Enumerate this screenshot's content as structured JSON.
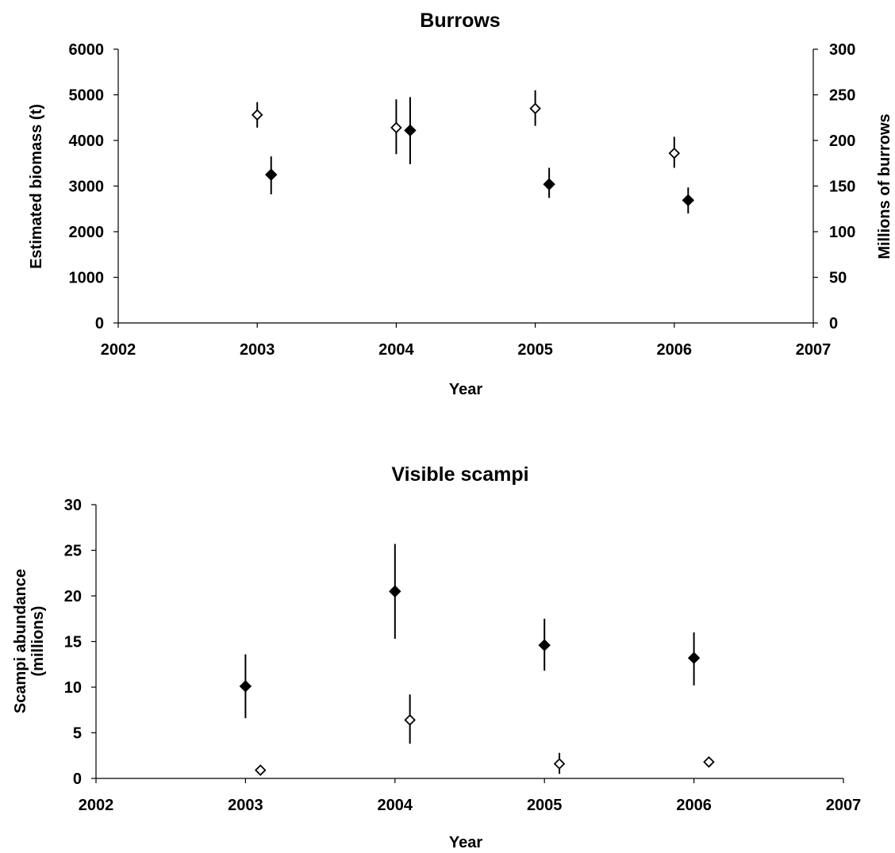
{
  "chart_data": [
    {
      "type": "scatter",
      "title": "Burrows",
      "xlabel": "Year",
      "ylabel": "Estimated biomass (t)",
      "y2label": "Millions of burrows",
      "xlim": [
        2002,
        2007
      ],
      "ylim": [
        0,
        6000
      ],
      "y2lim": [
        0,
        300
      ],
      "xticks": [
        "2002",
        "2003",
        "2004",
        "2005",
        "2006",
        "2007"
      ],
      "yticks": [
        "0",
        "1000",
        "2000",
        "3000",
        "4000",
        "5000",
        "6000"
      ],
      "y2ticks": [
        "0",
        "50",
        "100",
        "150",
        "200",
        "250",
        "300"
      ],
      "grid": false,
      "series": [
        {
          "axis": "y2",
          "marker": "open-diamond",
          "points": [
            {
              "x": 2003.0,
              "y": 228,
              "lo": 214,
              "hi": 242
            },
            {
              "x": 2004.0,
              "y": 214,
              "lo": 185,
              "hi": 245
            },
            {
              "x": 2005.0,
              "y": 235,
              "lo": 216,
              "hi": 255
            },
            {
              "x": 2006.0,
              "y": 186,
              "lo": 170,
              "hi": 204
            }
          ]
        },
        {
          "axis": "y",
          "marker": "filled-diamond",
          "points": [
            {
              "x": 2003.1,
              "y": 3250,
              "lo": 2820,
              "hi": 3650
            },
            {
              "x": 2004.1,
              "y": 4220,
              "lo": 3480,
              "hi": 4950
            },
            {
              "x": 2005.1,
              "y": 3040,
              "lo": 2740,
              "hi": 3400
            },
            {
              "x": 2006.1,
              "y": 2690,
              "lo": 2400,
              "hi": 2970
            }
          ]
        }
      ]
    },
    {
      "type": "scatter",
      "title": "Visible scampi",
      "xlabel": "Year",
      "ylabel": "Scampi abundance (millions)",
      "ylabel_lines": [
        "Scampi abundance",
        "(millions)"
      ],
      "xlim": [
        2002,
        2007
      ],
      "ylim": [
        0,
        30
      ],
      "xticks": [
        "2002",
        "2003",
        "2004",
        "2005",
        "2006",
        "2007"
      ],
      "yticks": [
        "0",
        "5",
        "10",
        "15",
        "20",
        "25",
        "30"
      ],
      "grid": false,
      "series": [
        {
          "axis": "y",
          "marker": "filled-diamond",
          "points": [
            {
              "x": 2003.0,
              "y": 10.1,
              "lo": 6.6,
              "hi": 13.6
            },
            {
              "x": 2004.0,
              "y": 20.5,
              "lo": 15.3,
              "hi": 25.7
            },
            {
              "x": 2005.0,
              "y": 14.6,
              "lo": 11.8,
              "hi": 17.5
            },
            {
              "x": 2006.0,
              "y": 13.2,
              "lo": 10.2,
              "hi": 16.0
            }
          ]
        },
        {
          "axis": "y",
          "marker": "open-diamond",
          "points": [
            {
              "x": 2003.1,
              "y": 0.9,
              "lo": 0.5,
              "hi": 1.3
            },
            {
              "x": 2004.1,
              "y": 6.4,
              "lo": 3.8,
              "hi": 9.2
            },
            {
              "x": 2005.1,
              "y": 1.6,
              "lo": 0.5,
              "hi": 2.8
            },
            {
              "x": 2006.1,
              "y": 1.8,
              "lo": 1.4,
              "hi": 2.2
            }
          ]
        }
      ]
    }
  ]
}
